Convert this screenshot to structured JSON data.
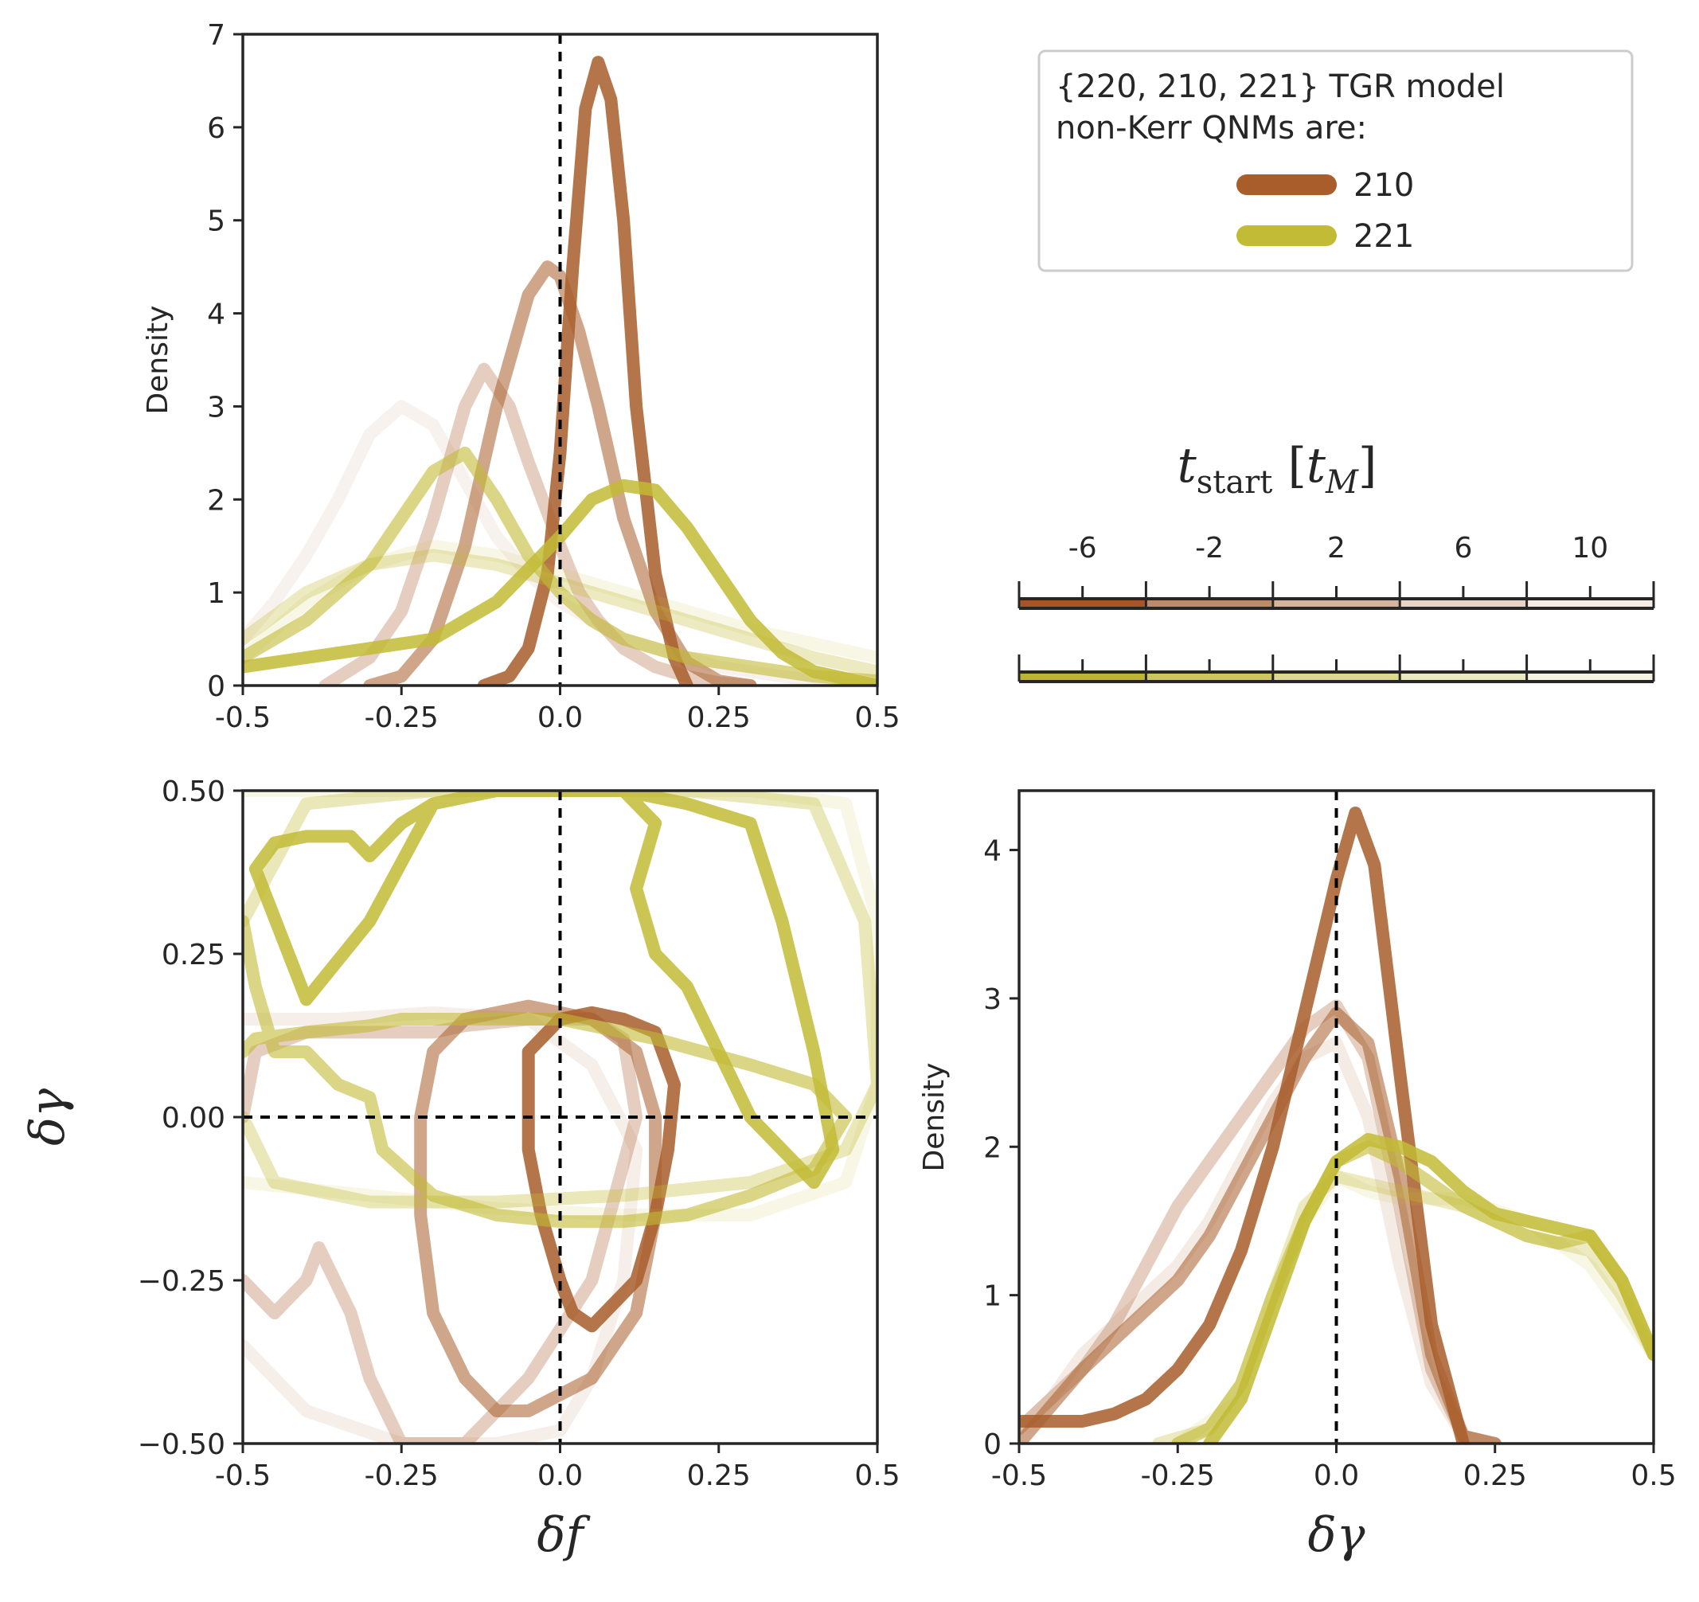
{
  "figure": {
    "legend": {
      "title_lines": [
        "{220, 210, 221} TGR model",
        "non-Kerr QNMs are:"
      ],
      "entries": [
        {
          "label": "210",
          "color": "#a85d2a"
        },
        {
          "label": "221",
          "color": "#c2bb35"
        }
      ]
    },
    "colorbar": {
      "title_var": "t",
      "title_sub": "start",
      "title_unit_open": " [",
      "title_unit_var": "t",
      "title_unit_sub": "M",
      "title_unit_close": "]",
      "ticks": [
        "-6",
        "-2",
        "2",
        "6",
        "10"
      ],
      "segments_210": [
        "#a65524",
        "#c18a66",
        "#d5b39c",
        "#e8d4c7",
        "#f5ebe5"
      ],
      "segments_221": [
        "#bdb62e",
        "#cec65a",
        "#ddd78f",
        "#ebe7c0",
        "#f6f3e0"
      ]
    }
  },
  "chart_data": [
    {
      "type": "line",
      "panel": "delta-f-density",
      "xlabel": "",
      "ylabel": "Density",
      "xlim": [
        -0.5,
        0.5
      ],
      "ylim": [
        0,
        7
      ],
      "x_ticks": [
        "-0.5",
        "-0.25",
        "0.0",
        "0.25",
        "0.5"
      ],
      "y_ticks": [
        "0",
        "1",
        "2",
        "3",
        "4",
        "5",
        "6",
        "7"
      ],
      "reference_lines": {
        "x": 0.0
      },
      "series": [
        {
          "mode": "210",
          "alpha": 0.08,
          "x": [
            -0.5,
            -0.45,
            -0.4,
            -0.35,
            -0.3,
            -0.25,
            -0.2,
            -0.15,
            -0.1,
            -0.05,
            0,
            0.05,
            0.1,
            0.15,
            0.2,
            0.25,
            0.3,
            0.35,
            0.4,
            0.5
          ],
          "y": [
            0.5,
            0.9,
            1.4,
            2.0,
            2.7,
            3.0,
            2.8,
            2.2,
            1.6,
            1.2,
            0.9,
            0.7,
            0.5,
            0.4,
            0.3,
            0.2,
            0.15,
            0.1,
            0.05,
            0.0
          ]
        },
        {
          "mode": "210",
          "alpha": 0.3,
          "x": [
            -0.37,
            -0.3,
            -0.25,
            -0.2,
            -0.15,
            -0.12,
            -0.08,
            -0.05,
            0,
            0.03,
            0.06,
            0.1,
            0.15,
            0.2,
            0.25,
            0.3
          ],
          "y": [
            0.0,
            0.3,
            0.8,
            1.8,
            3.0,
            3.4,
            3.0,
            2.4,
            1.5,
            1.0,
            0.7,
            0.4,
            0.2,
            0.1,
            0.03,
            0.0
          ]
        },
        {
          "mode": "210",
          "alpha": 0.55,
          "x": [
            -0.3,
            -0.25,
            -0.2,
            -0.15,
            -0.1,
            -0.05,
            -0.02,
            0,
            0.03,
            0.06,
            0.1,
            0.15,
            0.2,
            0.25,
            0.3
          ],
          "y": [
            0.0,
            0.1,
            0.5,
            1.5,
            3.0,
            4.2,
            4.5,
            4.4,
            3.8,
            3.0,
            1.8,
            0.8,
            0.25,
            0.05,
            0.0
          ]
        },
        {
          "mode": "210",
          "alpha": 0.85,
          "x": [
            -0.12,
            -0.08,
            -0.05,
            -0.02,
            0,
            0.02,
            0.04,
            0.06,
            0.08,
            0.1,
            0.12,
            0.15,
            0.18,
            0.2
          ],
          "y": [
            0.0,
            0.1,
            0.4,
            1.2,
            2.5,
            4.5,
            6.2,
            6.7,
            6.3,
            5.0,
            3.0,
            1.2,
            0.3,
            0.0
          ]
        },
        {
          "mode": "221",
          "alpha": 0.12,
          "x": [
            -0.5,
            -0.4,
            -0.3,
            -0.2,
            -0.1,
            0,
            0.1,
            0.2,
            0.3,
            0.4,
            0.5
          ],
          "y": [
            0.3,
            0.9,
            1.3,
            1.5,
            1.4,
            1.2,
            1.0,
            0.8,
            0.6,
            0.45,
            0.3
          ]
        },
        {
          "mode": "221",
          "alpha": 0.3,
          "x": [
            -0.5,
            -0.4,
            -0.3,
            -0.2,
            -0.1,
            0,
            0.1,
            0.2,
            0.3,
            0.4,
            0.5
          ],
          "y": [
            0.5,
            1.0,
            1.3,
            1.4,
            1.3,
            1.1,
            0.9,
            0.7,
            0.5,
            0.3,
            0.15
          ]
        },
        {
          "mode": "221",
          "alpha": 0.6,
          "x": [
            -0.5,
            -0.4,
            -0.3,
            -0.2,
            -0.15,
            -0.1,
            -0.05,
            0,
            0.05,
            0.1,
            0.2,
            0.3,
            0.4,
            0.5
          ],
          "y": [
            0.3,
            0.7,
            1.3,
            2.3,
            2.5,
            2.0,
            1.4,
            1.0,
            0.7,
            0.5,
            0.3,
            0.2,
            0.1,
            0.05
          ]
        },
        {
          "mode": "221",
          "alpha": 0.85,
          "x": [
            -0.5,
            -0.4,
            -0.3,
            -0.2,
            -0.1,
            0,
            0.05,
            0.1,
            0.15,
            0.2,
            0.25,
            0.3,
            0.35,
            0.4,
            0.5
          ],
          "y": [
            0.2,
            0.3,
            0.4,
            0.5,
            0.9,
            1.6,
            2.0,
            2.15,
            2.1,
            1.7,
            1.2,
            0.7,
            0.35,
            0.15,
            0.0
          ]
        }
      ]
    },
    {
      "type": "line",
      "panel": "joint-contours",
      "xlabel": "δf",
      "ylabel": "δγ",
      "xlim": [
        -0.5,
        0.5
      ],
      "ylim": [
        -0.5,
        0.5
      ],
      "x_ticks": [
        "-0.5",
        "-0.25",
        "0.0",
        "0.25",
        "0.5"
      ],
      "y_ticks": [
        "0.50",
        "0.25",
        "0.00",
        "−0.25",
        "−0.50"
      ],
      "reference_lines": {
        "x": 0.0,
        "y": 0.0
      },
      "series": [
        {
          "mode": "210",
          "alpha": 0.1,
          "x": [
            -0.5,
            -0.45,
            -0.35,
            -0.2,
            -0.05,
            0.05,
            0.12,
            0.1,
            0.05,
            0.0,
            -0.1,
            -0.25,
            -0.4,
            -0.5
          ],
          "y": [
            0.15,
            0.15,
            0.15,
            0.16,
            0.15,
            0.08,
            -0.05,
            -0.25,
            -0.4,
            -0.48,
            -0.5,
            -0.5,
            -0.45,
            -0.35
          ]
        },
        {
          "mode": "210",
          "alpha": 0.3,
          "x": [
            -0.5,
            -0.45,
            -0.4,
            -0.38,
            -0.33,
            -0.3,
            -0.25,
            -0.15,
            -0.05,
            0.05,
            0.12,
            0.1,
            0.05,
            0.0,
            -0.05,
            -0.15,
            -0.2,
            -0.3,
            -0.4,
            -0.48,
            -0.5
          ],
          "y": [
            -0.25,
            -0.3,
            -0.25,
            -0.2,
            -0.3,
            -0.4,
            -0.5,
            -0.5,
            -0.4,
            -0.25,
            0.0,
            0.12,
            0.15,
            0.15,
            0.15,
            0.14,
            0.13,
            0.13,
            0.13,
            0.1,
            0.0
          ]
        },
        {
          "mode": "210",
          "alpha": 0.55,
          "x": [
            -0.2,
            -0.15,
            -0.05,
            0.05,
            0.12,
            0.15,
            0.15,
            0.12,
            0.05,
            -0.05,
            -0.1,
            -0.15,
            -0.2,
            -0.22,
            -0.22,
            -0.2
          ],
          "y": [
            0.1,
            0.15,
            0.17,
            0.15,
            0.1,
            0.0,
            -0.15,
            -0.3,
            -0.4,
            -0.45,
            -0.45,
            -0.4,
            -0.3,
            -0.15,
            0.0,
            0.1
          ]
        },
        {
          "mode": "210",
          "alpha": 0.85,
          "x": [
            -0.05,
            0.0,
            0.05,
            0.1,
            0.15,
            0.18,
            0.17,
            0.15,
            0.12,
            0.1,
            0.05,
            0.02,
            0.0,
            -0.03,
            -0.05,
            -0.05
          ],
          "y": [
            0.1,
            0.15,
            0.16,
            0.15,
            0.13,
            0.05,
            -0.05,
            -0.15,
            -0.25,
            -0.27,
            -0.32,
            -0.3,
            -0.25,
            -0.15,
            -0.05,
            0.1
          ]
        },
        {
          "mode": "221",
          "alpha": 0.12,
          "x": [
            -0.5,
            -0.3,
            -0.1,
            0.1,
            0.3,
            0.45,
            0.5,
            0.5,
            0.45,
            0.3,
            0.1,
            -0.1,
            -0.3,
            -0.5
          ],
          "y": [
            0.5,
            0.5,
            0.5,
            0.5,
            0.5,
            0.48,
            0.3,
            0.05,
            -0.1,
            -0.15,
            -0.15,
            -0.14,
            -0.12,
            -0.1
          ]
        },
        {
          "mode": "221",
          "alpha": 0.35,
          "x": [
            -0.5,
            -0.4,
            -0.2,
            0.0,
            0.2,
            0.4,
            0.48,
            0.5,
            0.45,
            0.3,
            0.1,
            -0.1,
            -0.3,
            -0.45,
            -0.5
          ],
          "y": [
            0.3,
            0.48,
            0.5,
            0.5,
            0.5,
            0.48,
            0.3,
            0.05,
            -0.05,
            -0.1,
            -0.12,
            -0.13,
            -0.13,
            -0.1,
            0.0
          ]
        },
        {
          "mode": "221",
          "alpha": 0.6,
          "x": [
            -0.5,
            -0.48,
            -0.45,
            -0.4,
            -0.35,
            -0.3,
            -0.28,
            -0.2,
            -0.1,
            0.0,
            0.1,
            0.2,
            0.3,
            0.4,
            0.45,
            0.4,
            0.3,
            0.15,
            0.0,
            -0.15,
            -0.25,
            -0.3,
            -0.4,
            -0.48,
            -0.5
          ],
          "y": [
            0.3,
            0.2,
            0.1,
            0.1,
            0.05,
            0.03,
            -0.05,
            -0.12,
            -0.15,
            -0.16,
            -0.16,
            -0.15,
            -0.12,
            -0.08,
            0.0,
            0.05,
            0.08,
            0.12,
            0.15,
            0.15,
            0.15,
            0.14,
            0.13,
            0.12,
            0.1
          ]
        },
        {
          "mode": "221",
          "alpha": 0.85,
          "x": [
            -0.48,
            -0.45,
            -0.4,
            -0.33,
            -0.3,
            -0.27,
            -0.25,
            -0.2,
            -0.1,
            0.0,
            0.1,
            0.15,
            0.12,
            0.15,
            0.2,
            0.3,
            0.4,
            0.43,
            0.4,
            0.35,
            0.3,
            0.2,
            0.1,
            0.0,
            -0.1,
            -0.2,
            -0.3,
            -0.4,
            -0.48
          ],
          "y": [
            0.38,
            0.42,
            0.43,
            0.43,
            0.4,
            0.43,
            0.45,
            0.48,
            0.5,
            0.5,
            0.5,
            0.45,
            0.35,
            0.25,
            0.2,
            0.0,
            -0.1,
            -0.05,
            0.1,
            0.3,
            0.45,
            0.48,
            0.5,
            0.52,
            0.5,
            0.48,
            0.3,
            0.18,
            0.38
          ]
        }
      ]
    },
    {
      "type": "line",
      "panel": "delta-gamma-density",
      "xlabel": "δγ",
      "ylabel": "Density",
      "xlim": [
        -0.5,
        0.5
      ],
      "ylim": [
        0,
        4.4
      ],
      "x_ticks": [
        "-0.5",
        "-0.25",
        "0.0",
        "0.25",
        "0.5"
      ],
      "y_ticks": [
        "0",
        "1",
        "2",
        "3",
        "4"
      ],
      "reference_lines": {
        "x": 0.0
      },
      "series": [
        {
          "mode": "210",
          "alpha": 0.12,
          "x": [
            -0.5,
            -0.45,
            -0.4,
            -0.35,
            -0.3,
            -0.25,
            -0.2,
            -0.15,
            -0.1,
            -0.05,
            0,
            0.05,
            0.1,
            0.15,
            0.2,
            0.25
          ],
          "y": [
            0.1,
            0.3,
            0.6,
            0.8,
            1.0,
            1.2,
            1.5,
            1.9,
            2.3,
            2.6,
            2.7,
            2.2,
            1.2,
            0.4,
            0.05,
            0.0
          ]
        },
        {
          "mode": "210",
          "alpha": 0.3,
          "x": [
            -0.5,
            -0.45,
            -0.4,
            -0.35,
            -0.3,
            -0.25,
            -0.2,
            -0.15,
            -0.1,
            -0.05,
            0,
            0.05,
            0.1,
            0.15,
            0.2,
            0.25
          ],
          "y": [
            0.1,
            0.3,
            0.5,
            0.8,
            1.2,
            1.6,
            1.9,
            2.2,
            2.5,
            2.8,
            2.95,
            2.6,
            1.6,
            0.5,
            0.05,
            0.0
          ]
        },
        {
          "mode": "210",
          "alpha": 0.55,
          "x": [
            -0.5,
            -0.45,
            -0.4,
            -0.35,
            -0.3,
            -0.25,
            -0.2,
            -0.15,
            -0.1,
            -0.05,
            0,
            0.05,
            0.1,
            0.15,
            0.2,
            0.25
          ],
          "y": [
            0.0,
            0.25,
            0.5,
            0.7,
            0.9,
            1.1,
            1.4,
            1.8,
            2.2,
            2.6,
            2.9,
            2.7,
            1.8,
            0.6,
            0.05,
            0.0
          ]
        },
        {
          "mode": "210",
          "alpha": 0.85,
          "x": [
            -0.5,
            -0.45,
            -0.4,
            -0.35,
            -0.3,
            -0.25,
            -0.2,
            -0.15,
            -0.1,
            -0.05,
            0,
            0.03,
            0.06,
            0.1,
            0.15,
            0.2
          ],
          "y": [
            0.15,
            0.15,
            0.15,
            0.2,
            0.3,
            0.5,
            0.8,
            1.3,
            2.0,
            2.9,
            3.8,
            4.25,
            3.9,
            2.5,
            0.8,
            0.0
          ]
        },
        {
          "mode": "221",
          "alpha": 0.12,
          "x": [
            -0.25,
            -0.15,
            -0.1,
            -0.05,
            0,
            0.05,
            0.1,
            0.2,
            0.3,
            0.4,
            0.45,
            0.5
          ],
          "y": [
            0.0,
            0.3,
            0.9,
            1.5,
            1.8,
            1.7,
            1.65,
            1.65,
            1.5,
            1.2,
            0.9,
            0.6
          ]
        },
        {
          "mode": "221",
          "alpha": 0.3,
          "x": [
            -0.28,
            -0.2,
            -0.15,
            -0.1,
            -0.05,
            0,
            0.05,
            0.1,
            0.2,
            0.3,
            0.4,
            0.45,
            0.5
          ],
          "y": [
            0.0,
            0.1,
            0.4,
            1.0,
            1.6,
            1.8,
            1.75,
            1.7,
            1.6,
            1.4,
            1.3,
            1.0,
            0.6
          ]
        },
        {
          "mode": "221",
          "alpha": 0.6,
          "x": [
            -0.25,
            -0.2,
            -0.15,
            -0.1,
            -0.05,
            0,
            0.05,
            0.1,
            0.2,
            0.3,
            0.35,
            0.4,
            0.45,
            0.5
          ],
          "y": [
            0.0,
            0.1,
            0.4,
            1.0,
            1.5,
            1.9,
            2.0,
            1.9,
            1.6,
            1.4,
            1.35,
            1.4,
            1.1,
            0.6
          ]
        },
        {
          "mode": "221",
          "alpha": 0.85,
          "x": [
            -0.2,
            -0.15,
            -0.1,
            -0.05,
            0,
            0.05,
            0.1,
            0.15,
            0.2,
            0.25,
            0.3,
            0.35,
            0.4,
            0.45,
            0.5
          ],
          "y": [
            0.0,
            0.3,
            0.9,
            1.5,
            1.9,
            2.05,
            2.0,
            1.9,
            1.7,
            1.55,
            1.5,
            1.45,
            1.4,
            1.1,
            0.6
          ]
        }
      ]
    }
  ]
}
